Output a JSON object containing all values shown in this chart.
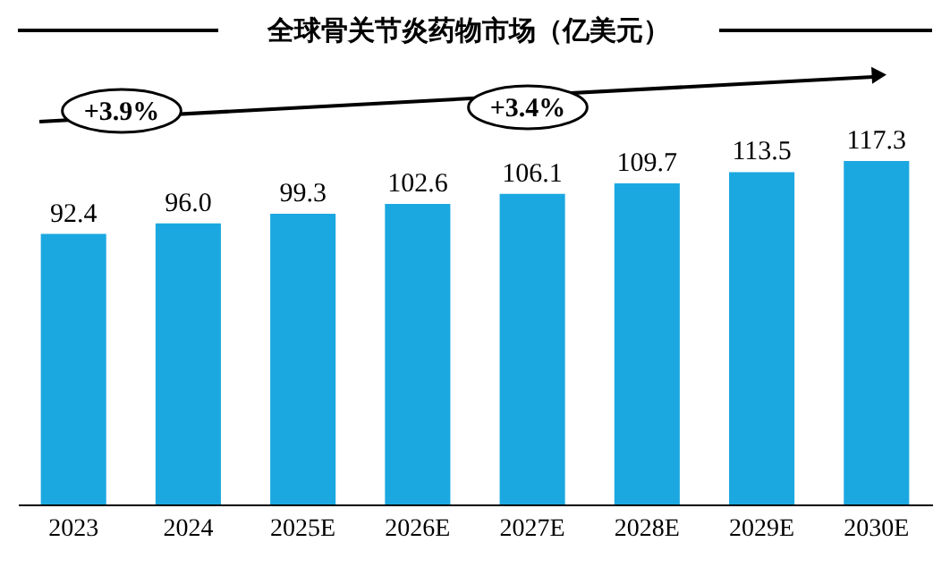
{
  "chart_data": {
    "type": "bar",
    "title": "全球骨关节炎药物市场（亿美元）",
    "categories": [
      "2023",
      "2024",
      "2025E",
      "2026E",
      "2027E",
      "2028E",
      "2029E",
      "2030E"
    ],
    "values": [
      92.4,
      96.0,
      99.3,
      102.6,
      106.1,
      109.7,
      113.5,
      117.3
    ],
    "color": "#1ba8e0",
    "value_labels": [
      "92.4",
      "96.0",
      "99.3",
      "102.6",
      "106.1",
      "109.7",
      "113.5",
      "117.3"
    ],
    "tick_labels": "x",
    "annotations": [
      "+3.9%",
      "+3.4%"
    ]
  }
}
